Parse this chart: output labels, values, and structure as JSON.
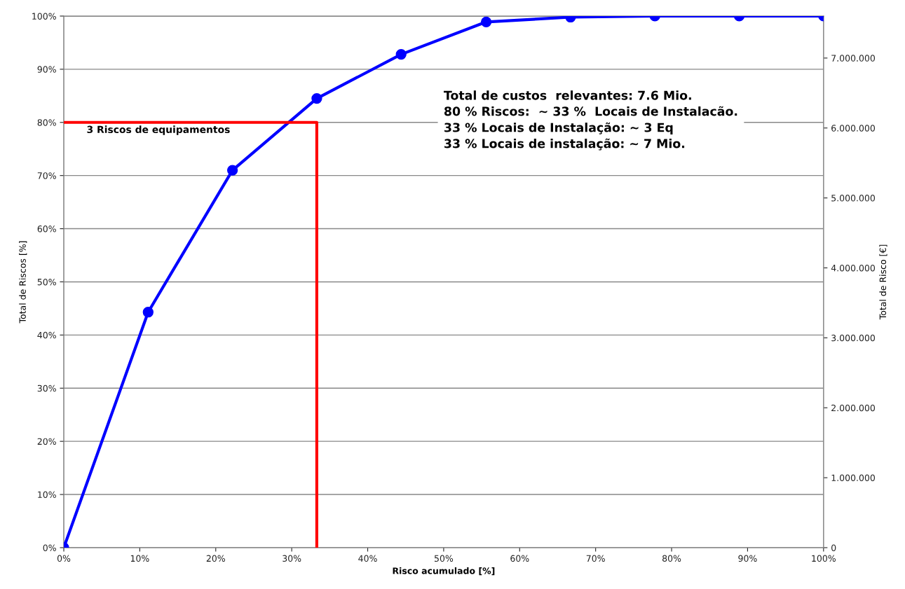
{
  "chart_data": {
    "type": "line",
    "xlabel": "Risco acumulado [%]",
    "ylabel": "Total de Riscos [%]",
    "y2label": "Total de Risco [€]",
    "series": [
      {
        "color": "#0000ff",
        "marker": "circle",
        "x": [
          0,
          11.1,
          22.2,
          33.3,
          44.4,
          55.6,
          66.7,
          77.8,
          88.9,
          100
        ],
        "values": [
          0,
          44.3,
          71.0,
          84.5,
          92.8,
          98.9,
          99.8,
          100,
          100,
          100
        ]
      },
      {
        "color": "#ff0000",
        "marker": "none",
        "x": [
          0,
          33.3,
          33.3
        ],
        "values": [
          80,
          80,
          0
        ]
      }
    ],
    "xlim": [
      0,
      100
    ],
    "ylim": [
      0,
      100
    ],
    "y2lim": [
      0,
      7600000
    ],
    "xticks": [
      {
        "value": 0,
        "label": "0%"
      },
      {
        "value": 10,
        "label": "10%"
      },
      {
        "value": 20,
        "label": "20%"
      },
      {
        "value": 30,
        "label": "30%"
      },
      {
        "value": 40,
        "label": "40%"
      },
      {
        "value": 50,
        "label": "50%"
      },
      {
        "value": 60,
        "label": "60%"
      },
      {
        "value": 70,
        "label": "70%"
      },
      {
        "value": 80,
        "label": "80%"
      },
      {
        "value": 90,
        "label": "90%"
      },
      {
        "value": 100,
        "label": "100%"
      }
    ],
    "yticks": [
      {
        "value": 0,
        "label": "0%"
      },
      {
        "value": 10,
        "label": "10%"
      },
      {
        "value": 20,
        "label": "20%"
      },
      {
        "value": 30,
        "label": "30%"
      },
      {
        "value": 40,
        "label": "40%"
      },
      {
        "value": 50,
        "label": "50%"
      },
      {
        "value": 60,
        "label": "60%"
      },
      {
        "value": 70,
        "label": "70%"
      },
      {
        "value": 80,
        "label": "80%"
      },
      {
        "value": 90,
        "label": "90%"
      },
      {
        "value": 100,
        "label": "100%"
      }
    ],
    "y2ticks": [
      0,
      {
        "value": 1000000,
        "label": "1.000.000"
      },
      {
        "value": 2000000,
        "label": "2.000.000"
      },
      {
        "value": 3000000,
        "label": "3.000.000"
      },
      {
        "value": 4000000,
        "label": "4.000.000"
      },
      {
        "value": 5000000,
        "label": "5.000.000"
      },
      {
        "value": 6000000,
        "label": "6.000.000"
      },
      {
        "value": 7000000,
        "label": "7.000.000"
      }
    ],
    "grid": "y",
    "annotations": [
      {
        "text": "3 Riscos de equipamentos",
        "x": 3,
        "y": 80
      },
      "Total de custos  relevantes: 7.6 Mio.\n80 % Riscos:  ~ 33 %  Locais de Instalacão.\n33 % Locais de Instalação: ~ 3 Eq\n33 % Locais de instalação: ~ 7 Mio."
    ]
  }
}
